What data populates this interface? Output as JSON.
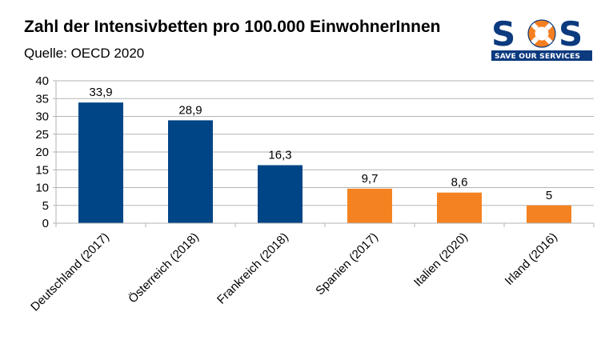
{
  "header": {
    "title": "Zahl der Intensivbetten pro 100.000 EinwohnerInnen",
    "subtitle": "Quelle: OECD 2020"
  },
  "logo": {
    "text_s1": "S",
    "text_o": "O",
    "text_s2": "S",
    "band_text": "SAVE OUR SERVICES",
    "color_primary": "#0b3a7e",
    "color_accent": "#f47f20",
    "icon": "lifebuoy-icon"
  },
  "chart_data": {
    "type": "bar",
    "categories": [
      "Deutschland (2017)",
      "Österreich (2018)",
      "Frankreich (2018)",
      "Spanien (2017)",
      "Italien (2020)",
      "Irland (2016)"
    ],
    "values": [
      33.9,
      28.9,
      16.3,
      9.7,
      8.6,
      5
    ],
    "data_labels": [
      "33,9",
      "28,9",
      "16,3",
      "9,7",
      "8,6",
      "5"
    ],
    "bar_colors": [
      "#004586",
      "#004586",
      "#004586",
      "#f58220",
      "#f58220",
      "#f58220"
    ],
    "ylim": [
      0,
      40
    ],
    "yticks": [
      0,
      5,
      10,
      15,
      20,
      25,
      30,
      35,
      40
    ],
    "grid": true,
    "xlabel": "",
    "ylabel": ""
  }
}
